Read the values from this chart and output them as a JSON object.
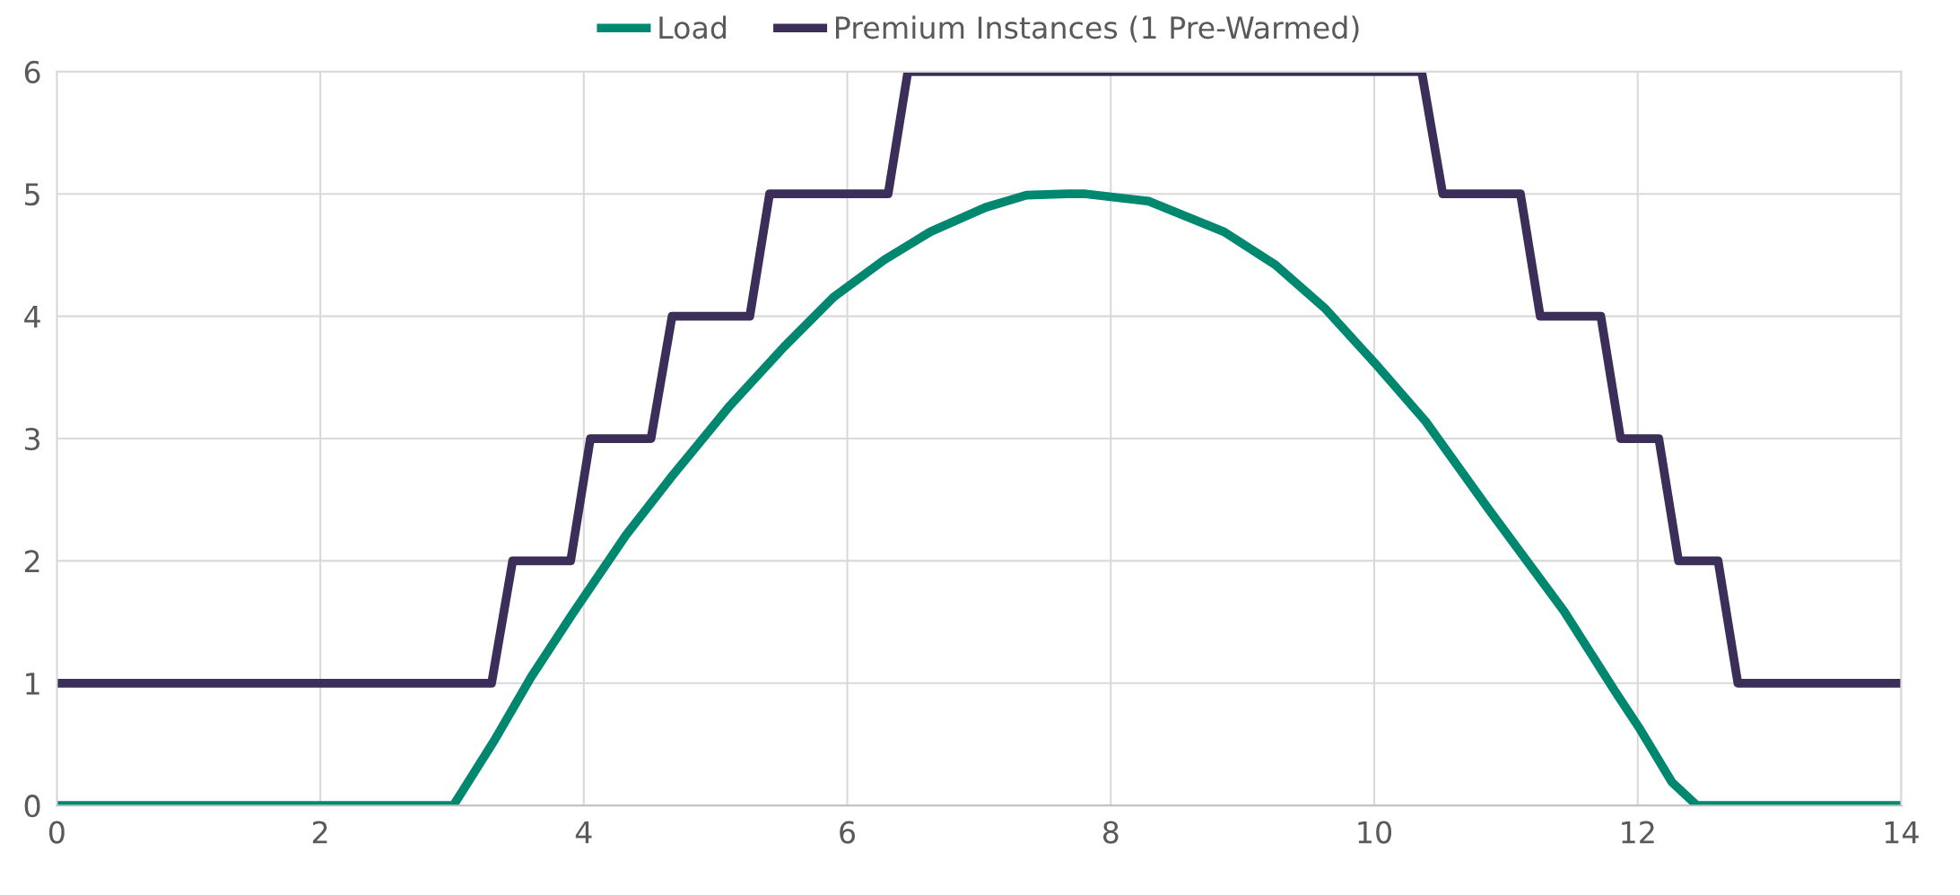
{
  "chart_data": {
    "type": "line",
    "xlim": [
      0,
      14
    ],
    "ylim": [
      0,
      6
    ],
    "xticks": [
      0,
      2,
      4,
      6,
      8,
      10,
      12,
      14
    ],
    "yticks": [
      0,
      1,
      2,
      3,
      4,
      5,
      6
    ],
    "grid": true,
    "legend": "top",
    "marker": "none",
    "line_style": "solid",
    "series": [
      {
        "name": "Load",
        "color": "#00876f",
        "x": [
          0,
          3.01,
          3.32,
          3.6,
          3.91,
          4.32,
          4.66,
          5.11,
          5.52,
          5.9,
          6.28,
          6.63,
          7.05,
          7.36,
          7.67,
          7.81,
          8.29,
          8.86,
          9.25,
          9.63,
          10.01,
          10.39,
          10.87,
          11.44,
          11.83,
          12.02,
          12.26,
          12.45,
          14
        ],
        "values": [
          0,
          0,
          0.53,
          1.05,
          1.56,
          2.21,
          2.68,
          3.27,
          3.75,
          4.16,
          4.46,
          4.69,
          4.89,
          4.99,
          5.0,
          5.0,
          4.94,
          4.69,
          4.42,
          4.06,
          3.61,
          3.14,
          2.42,
          1.59,
          0.93,
          0.62,
          0.19,
          0,
          0
        ]
      },
      {
        "name": "Premium Instances (1 Pre-Warmed)",
        "color": "#3b2e58",
        "x": [
          0,
          3.3,
          3.46,
          3.9,
          4.05,
          4.51,
          4.67,
          5.26,
          5.41,
          6.31,
          6.46,
          10.36,
          10.52,
          11.11,
          11.26,
          11.72,
          11.87,
          12.16,
          12.31,
          12.61,
          12.76,
          14
        ],
        "values": [
          1,
          1,
          2,
          2,
          3,
          3,
          4,
          4,
          5,
          5,
          6,
          6,
          5,
          5,
          4,
          4,
          3,
          3,
          2,
          2,
          1,
          1
        ]
      }
    ]
  }
}
